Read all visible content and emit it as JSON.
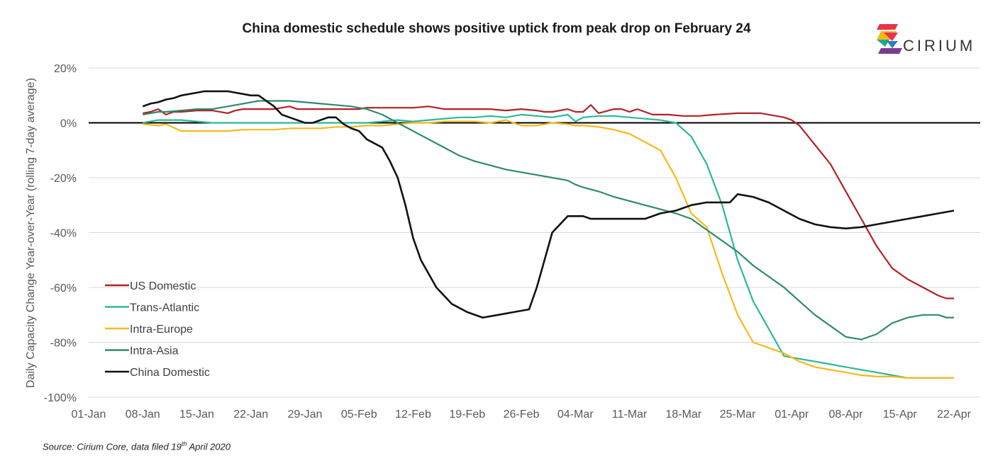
{
  "title": "China domestic schedule shows positive uptick from peak drop on February 24",
  "logo": {
    "text": "CIRIUM"
  },
  "source": {
    "text": "Source: Cirium Core, data filed 19",
    "sup": "th",
    "tail": " April 2020"
  },
  "chart_data": {
    "type": "line",
    "title": "China domestic schedule shows positive uptick from peak drop on February 24",
    "ylabel": "Daily Capacity Change Year-over-Year (rolling 7-day average)",
    "xlabel": "",
    "ylim": [
      -100,
      20
    ],
    "yticks": [
      20,
      0,
      -20,
      -40,
      -60,
      -80,
      -100
    ],
    "ytick_labels": [
      "20%",
      "0%",
      "-20%",
      "-40%",
      "-60%",
      "-80%",
      "-100%"
    ],
    "x_range_days": [
      0,
      112
    ],
    "xtick_days": [
      0,
      7,
      14,
      21,
      28,
      35,
      42,
      49,
      56,
      63,
      70,
      77,
      84,
      91,
      98,
      105,
      112
    ],
    "xtick_labels": [
      "01-Jan",
      "08-Jan",
      "15-Jan",
      "22-Jan",
      "29-Jan",
      "05-Feb",
      "12-Feb",
      "19-Feb",
      "26-Feb",
      "04-Mar",
      "11-Mar",
      "18-Mar",
      "25-Mar",
      "01-Apr",
      "08-Apr",
      "15-Apr",
      "22-Apr"
    ],
    "grid": "horizontal",
    "legend_position": "bottom-left",
    "series": [
      {
        "name": "US Domestic",
        "color": "#b22226",
        "x": [
          7,
          8,
          9,
          10,
          11,
          12,
          14,
          16,
          18,
          19,
          20,
          21,
          24,
          26,
          27,
          28,
          30,
          32,
          34,
          35,
          36,
          38,
          40,
          42,
          44,
          46,
          48,
          50,
          52,
          54,
          56,
          58,
          59,
          60,
          62,
          63,
          64,
          65,
          66,
          68,
          69,
          70,
          71,
          72,
          73,
          75,
          77,
          79,
          81,
          84,
          86,
          87,
          88,
          89,
          90,
          91,
          92,
          94,
          96,
          98,
          100,
          102,
          104,
          106,
          108,
          110,
          111,
          112
        ],
        "y": [
          3.5,
          4,
          5,
          3,
          4,
          4,
          4.5,
          4.5,
          3.5,
          4.5,
          5,
          5,
          5,
          6,
          5,
          5,
          5,
          5,
          5,
          5,
          5.5,
          5.5,
          5.5,
          5.5,
          6,
          5,
          5,
          5,
          5,
          4.5,
          5,
          4.5,
          4,
          4,
          5,
          4,
          4,
          6.5,
          3.5,
          5,
          5,
          4,
          5,
          4,
          3,
          3,
          2.5,
          2.5,
          3,
          3.5,
          3.5,
          3.5,
          3,
          2.5,
          2,
          1,
          -1,
          -8,
          -15,
          -25,
          -35,
          -45,
          -53,
          -57,
          -60,
          -63,
          -64,
          -64
        ]
      },
      {
        "name": "Trans-Atlantic",
        "color": "#2bb89a",
        "x": [
          7,
          9,
          10,
          12,
          14,
          16,
          18,
          20,
          22,
          24,
          26,
          28,
          30,
          32,
          34,
          36,
          38,
          40,
          42,
          44,
          46,
          48,
          50,
          52,
          54,
          56,
          58,
          60,
          62,
          63,
          64,
          66,
          68,
          70,
          72,
          74,
          76,
          78,
          80,
          82,
          84,
          86,
          88,
          90,
          92,
          94,
          96,
          98,
          100,
          102,
          104,
          106,
          108,
          110,
          112
        ],
        "y": [
          0,
          1,
          1,
          1,
          0.5,
          0,
          0,
          0,
          0,
          0,
          0,
          0,
          0,
          0,
          0,
          0,
          0.5,
          1,
          0.5,
          1,
          1.5,
          2,
          2,
          2.5,
          2,
          3,
          2.5,
          2,
          3,
          0.5,
          2,
          2.5,
          2.5,
          2,
          1.5,
          1,
          0,
          -5,
          -15,
          -30,
          -50,
          -65,
          -75,
          -85,
          -86,
          -87,
          -88,
          -89,
          -90,
          -91,
          -92,
          -93,
          -93,
          -93,
          -93
        ]
      },
      {
        "name": "Intra-Europe",
        "color": "#f5b91a",
        "x": [
          7,
          9,
          10,
          12,
          14,
          16,
          18,
          20,
          22,
          24,
          26,
          28,
          30,
          32,
          34,
          36,
          38,
          40,
          42,
          44,
          46,
          48,
          50,
          52,
          54,
          56,
          58,
          60,
          62,
          63,
          64,
          66,
          68,
          70,
          72,
          74,
          76,
          78,
          80,
          82,
          84,
          86,
          88,
          90,
          92,
          94,
          96,
          98,
          100,
          102,
          104,
          106,
          108,
          110,
          112
        ],
        "y": [
          -0.5,
          -1,
          -0.5,
          -3,
          -3,
          -3,
          -3,
          -2.5,
          -2.5,
          -2.5,
          -2,
          -2,
          -2,
          -1.5,
          -1.5,
          -1,
          -1,
          -0.5,
          0,
          0,
          0.5,
          0.5,
          0.5,
          0,
          1,
          -1,
          -1,
          0,
          -0.5,
          -1,
          -1,
          -1.5,
          -2.5,
          -4,
          -7,
          -10,
          -20,
          -33,
          -38,
          -55,
          -70,
          -80,
          -82,
          -84,
          -87,
          -89,
          -90,
          -91,
          -92,
          -92.5,
          -92.5,
          -93,
          -93,
          -93,
          -93
        ]
      },
      {
        "name": "Intra-Asia",
        "color": "#2e8b6e",
        "x": [
          7,
          9,
          10,
          12,
          14,
          16,
          18,
          20,
          22,
          24,
          26,
          28,
          30,
          32,
          34,
          36,
          38,
          40,
          42,
          44,
          46,
          48,
          50,
          52,
          54,
          56,
          58,
          60,
          62,
          63,
          64,
          66,
          68,
          70,
          72,
          74,
          76,
          78,
          80,
          82,
          84,
          86,
          88,
          90,
          92,
          94,
          96,
          98,
          100,
          102,
          104,
          106,
          108,
          110,
          111,
          112
        ],
        "y": [
          3,
          4,
          4,
          4.5,
          5,
          5,
          6,
          7,
          8,
          8,
          8,
          7.5,
          7,
          6.5,
          6,
          5,
          3,
          0,
          -3,
          -6,
          -9,
          -12,
          -14,
          -15.5,
          -17,
          -18,
          -19,
          -20,
          -21,
          -22.5,
          -23.5,
          -25,
          -27,
          -28.5,
          -30,
          -31.5,
          -33,
          -35,
          -39,
          -43,
          -47,
          -52,
          -56,
          -60,
          -65,
          -70,
          -74,
          -78,
          -79,
          -77,
          -73,
          -71,
          -70,
          -70,
          -71,
          -71
        ]
      },
      {
        "name": "China Domestic",
        "color": "#111111",
        "x": [
          7,
          8,
          9,
          10,
          11,
          12,
          14,
          15,
          16,
          18,
          19,
          20,
          21,
          22,
          24,
          25,
          26,
          28,
          29,
          30,
          31,
          32,
          33,
          34,
          35,
          36,
          38,
          39,
          40,
          41,
          42,
          43,
          45,
          47,
          49,
          51,
          53,
          55,
          57,
          58,
          59,
          60,
          62,
          63,
          64,
          65,
          66,
          68,
          70,
          72,
          74,
          76,
          78,
          80,
          81,
          82,
          83,
          84,
          86,
          88,
          90,
          92,
          94,
          96,
          98,
          100,
          102,
          104,
          106,
          108,
          110,
          112
        ],
        "y": [
          6,
          7,
          7.5,
          8.5,
          9,
          10,
          11,
          11.5,
          11.5,
          11.5,
          11,
          10.5,
          10,
          10,
          6,
          3,
          2,
          0,
          0,
          1,
          2,
          2,
          -0.5,
          -2,
          -3,
          -6,
          -9,
          -14,
          -20,
          -30,
          -42,
          -50,
          -60,
          -66,
          -69,
          -71,
          -70,
          -69,
          -68,
          -60,
          -50,
          -40,
          -34,
          -34,
          -34,
          -35,
          -35,
          -35,
          -35,
          -35,
          -33,
          -32,
          -30,
          -29,
          -29,
          -29,
          -29,
          -26,
          -27,
          -29,
          -32,
          -35,
          -37,
          -38,
          -38.5,
          -38,
          -37,
          -36,
          -35,
          -34,
          -33,
          -32
        ]
      }
    ]
  }
}
